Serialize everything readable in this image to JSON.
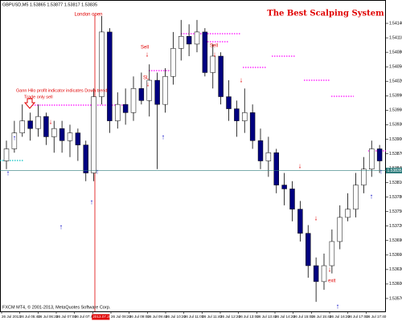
{
  "header": "GBPUSD,M5 1.53865 1.53877 1.53817 1.53835",
  "chart_data": {
    "type": "candlestick",
    "title": "The  Best Scalping System",
    "annotations": [
      "London open",
      "Sell",
      "Sell",
      "SL",
      "Gann Hilo profit indicator indicates Down trend",
      "Trade only sell",
      "exit"
    ],
    "footer": "FXCM MT4, © 2001-2013, MetaQuotes Software Corp.",
    "xtick_labels": [
      "26 Jul 2013",
      "26 Jul 05:40",
      "26 Jul 06:20",
      "26 Jul 07:00",
      "26 Jul 07:40",
      "2013.07.26 08:00",
      "26 Jul 08:20",
      "26 Jul 09:00",
      "26 Jul 09:40",
      "26 Jul 10:20",
      "26 Jul 11:00",
      "26 Jul 11:40",
      "26 Jul 12:20",
      "26 Jul 13:00",
      "26 Jul 13:40",
      "26 Jul 14:20",
      "26 Jul 15:00",
      "26 Jul 15:40",
      "26 Jul 16:20",
      "26 Jul 17:00",
      "26 Jul 17:40"
    ],
    "open": [
      1.53855,
      1.5388,
      1.53913,
      1.53938,
      1.53922,
      1.53947,
      1.53905,
      1.53922,
      1.53897,
      1.53913,
      1.53888,
      1.5383,
      1.53988,
      1.54122,
      1.53938,
      1.53972,
      1.53955,
      1.54005,
      1.5398,
      1.54022,
      1.53972,
      1.5403,
      1.54088,
      1.54113,
      1.54097,
      1.54122,
      1.54038,
      1.54072,
      1.53988,
      1.53963,
      1.53938,
      1.53955,
      1.53897,
      1.53855,
      1.53872,
      1.53805,
      1.53797,
      1.53755,
      1.53705,
      1.53638,
      1.53605,
      1.53638,
      1.53688,
      1.53738,
      1.53755,
      1.53805,
      1.53838,
      1.5388
    ],
    "high": [
      1.53897,
      1.53938,
      1.53972,
      1.53955,
      1.53972,
      1.53955,
      1.53938,
      1.53938,
      1.5393,
      1.53922,
      1.53897,
      1.54005,
      1.54155,
      1.5413,
      1.53997,
      1.54005,
      1.5403,
      1.54038,
      1.54055,
      1.54038,
      1.54047,
      1.54122,
      1.54147,
      1.54138,
      1.54147,
      1.5413,
      1.54097,
      1.5408,
      1.54022,
      1.5398,
      1.54005,
      1.53972,
      1.53922,
      1.53905,
      1.5388,
      1.5383,
      1.53813,
      1.53772,
      1.53722,
      1.53655,
      1.53663,
      1.53713,
      1.53763,
      1.53788,
      1.5383,
      1.53863,
      1.53897,
      1.53888
    ],
    "low": [
      1.53838,
      1.53872,
      1.53905,
      1.53897,
      1.53905,
      1.53888,
      1.53872,
      1.53872,
      1.53863,
      1.53855,
      1.53813,
      1.53813,
      1.53972,
      1.53913,
      1.53922,
      1.5393,
      1.53938,
      1.53972,
      1.53947,
      1.53838,
      1.53955,
      1.54013,
      1.54063,
      1.54072,
      1.5408,
      1.5403,
      1.54005,
      1.53972,
      1.53938,
      1.53905,
      1.53913,
      1.5388,
      1.53838,
      1.53822,
      1.53788,
      1.53763,
      1.5373,
      1.53688,
      1.53613,
      1.53563,
      1.53588,
      1.53622,
      1.53672,
      1.5373,
      1.53738,
      1.53788,
      1.53822,
      1.5383
    ],
    "close": [
      1.5388,
      1.53913,
      1.53938,
      1.53922,
      1.53947,
      1.53905,
      1.53922,
      1.53897,
      1.53913,
      1.53888,
      1.5383,
      1.53988,
      1.54122,
      1.53938,
      1.53972,
      1.53955,
      1.54005,
      1.5398,
      1.54022,
      1.53972,
      1.5403,
      1.54088,
      1.54113,
      1.54097,
      1.54122,
      1.54038,
      1.54072,
      1.53988,
      1.53963,
      1.53938,
      1.53955,
      1.53897,
      1.53855,
      1.53872,
      1.53805,
      1.53797,
      1.53755,
      1.53705,
      1.53638,
      1.53605,
      1.53638,
      1.53688,
      1.53738,
      1.53755,
      1.53805,
      1.53838,
      1.5388,
      1.53855
    ],
    "up_color": "#ffffff",
    "down_color": "#000080",
    "wick_color": "#000000",
    "last_price": 1.53835,
    "ylim": [
      1.5354,
      1.5418
    ],
    "yticks": [
      {
        "value": 1.5357,
        "label": "1.53570"
      },
      {
        "value": 1.536,
        "label": "1.53600"
      },
      {
        "value": 1.5363,
        "label": "1.53630"
      },
      {
        "value": 1.5366,
        "label": "1.53660"
      },
      {
        "value": 1.5369,
        "label": "1.53690"
      },
      {
        "value": 1.5372,
        "label": "1.53720"
      },
      {
        "value": 1.5375,
        "label": "1.53750"
      },
      {
        "value": 1.5378,
        "label": "1.53780"
      },
      {
        "value": 1.5381,
        "label": "1.53810"
      },
      {
        "value": 1.5384,
        "label": "1.53840"
      },
      {
        "value": 1.5387,
        "label": "1.53870"
      },
      {
        "value": 1.539,
        "label": "1.53900"
      },
      {
        "value": 1.5393,
        "label": "1.53930"
      },
      {
        "value": 1.5396,
        "label": "1.53960"
      },
      {
        "value": 1.5399,
        "label": "1.53990"
      },
      {
        "value": 1.5402,
        "label": "1.54020"
      },
      {
        "value": 1.5405,
        "label": "1.54050"
      },
      {
        "value": 1.5408,
        "label": "1.54080"
      },
      {
        "value": 1.5411,
        "label": "1.54110"
      },
      {
        "value": 1.5414,
        "label": "1.54140"
      }
    ]
  }
}
